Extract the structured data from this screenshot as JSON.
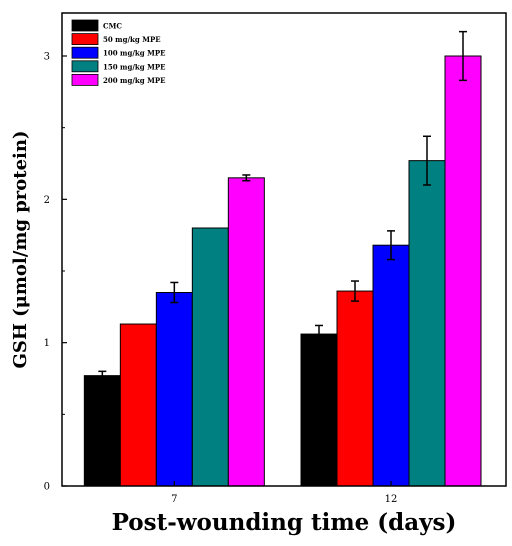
{
  "chart_data": {
    "type": "bar",
    "title": "",
    "xlabel": "Post-wounding time (days)",
    "ylabel": "GSH (μmol/mg protein)",
    "categories": [
      "7",
      "12"
    ],
    "ylim": [
      0,
      3.3
    ],
    "yticks": [
      "0",
      "1",
      "2",
      "3"
    ],
    "grid": false,
    "legend_position": "top-left",
    "series": [
      {
        "name": "CMC",
        "color": "#000000",
        "values": [
          0.77,
          1.06
        ],
        "errors": [
          0.03,
          0.06
        ]
      },
      {
        "name": "50 mg/kg MPE",
        "color": "#ff0000",
        "values": [
          1.13,
          1.36
        ],
        "errors": [
          0.0,
          0.07
        ]
      },
      {
        "name": "100 mg/kg MPE",
        "color": "#0000ff",
        "values": [
          1.35,
          1.68
        ],
        "errors": [
          0.07,
          0.1
        ]
      },
      {
        "name": "150 mg/kg MPE",
        "color": "#008080",
        "values": [
          1.8,
          2.27
        ],
        "errors": [
          0.0,
          0.17
        ]
      },
      {
        "name": "200 mg/kg MPE",
        "color": "#ff00ff",
        "values": [
          2.15,
          3.0
        ],
        "errors": [
          0.02,
          0.17
        ]
      }
    ]
  }
}
